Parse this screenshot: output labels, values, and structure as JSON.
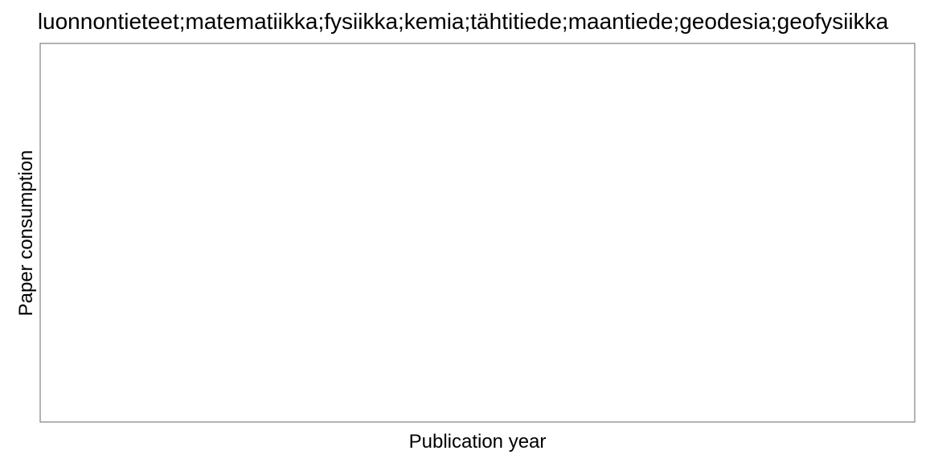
{
  "chart_data": {
    "type": "line",
    "title": "luonnontieteet;matematiikka;fysiikka;kemia;tähtitiede;maantiede;geodesia;geofysiikka",
    "xlabel": "Publication year",
    "ylabel": "Paper consumption",
    "series": [],
    "grid": false,
    "legend": "none"
  },
  "colors": {
    "panel_border": "#8a8a8a",
    "text": "#000000",
    "background": "#ffffff"
  }
}
